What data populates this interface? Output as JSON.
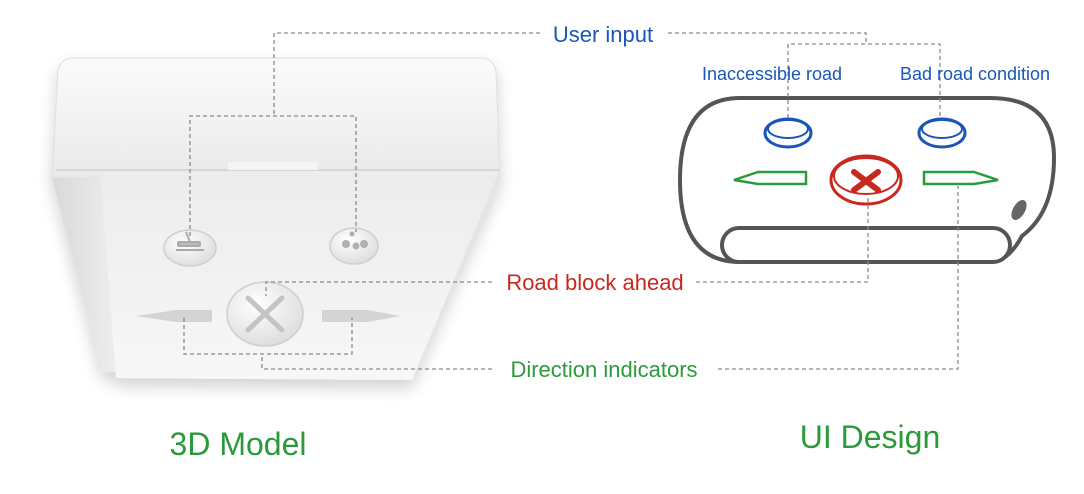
{
  "labels": {
    "user_input": "User input",
    "inaccessible_road": "Inaccessible road",
    "bad_road_condition": "Bad road condition",
    "road_block_ahead": "Road block ahead",
    "direction_indicators": "Direction indicators",
    "model_caption": "3D Model",
    "design_caption": "UI Design"
  },
  "colors": {
    "blue": "#1a56b8",
    "red": "#c8281e",
    "green": "#2a9a3a",
    "gray_line": "#888888",
    "outline": "#555555"
  },
  "icons": {
    "inaccessible": "road-barrier-icon",
    "bad_condition": "bumpy-road-icon",
    "block": "x-mark-icon",
    "left": "arrow-left-icon",
    "right": "arrow-right-icon"
  }
}
